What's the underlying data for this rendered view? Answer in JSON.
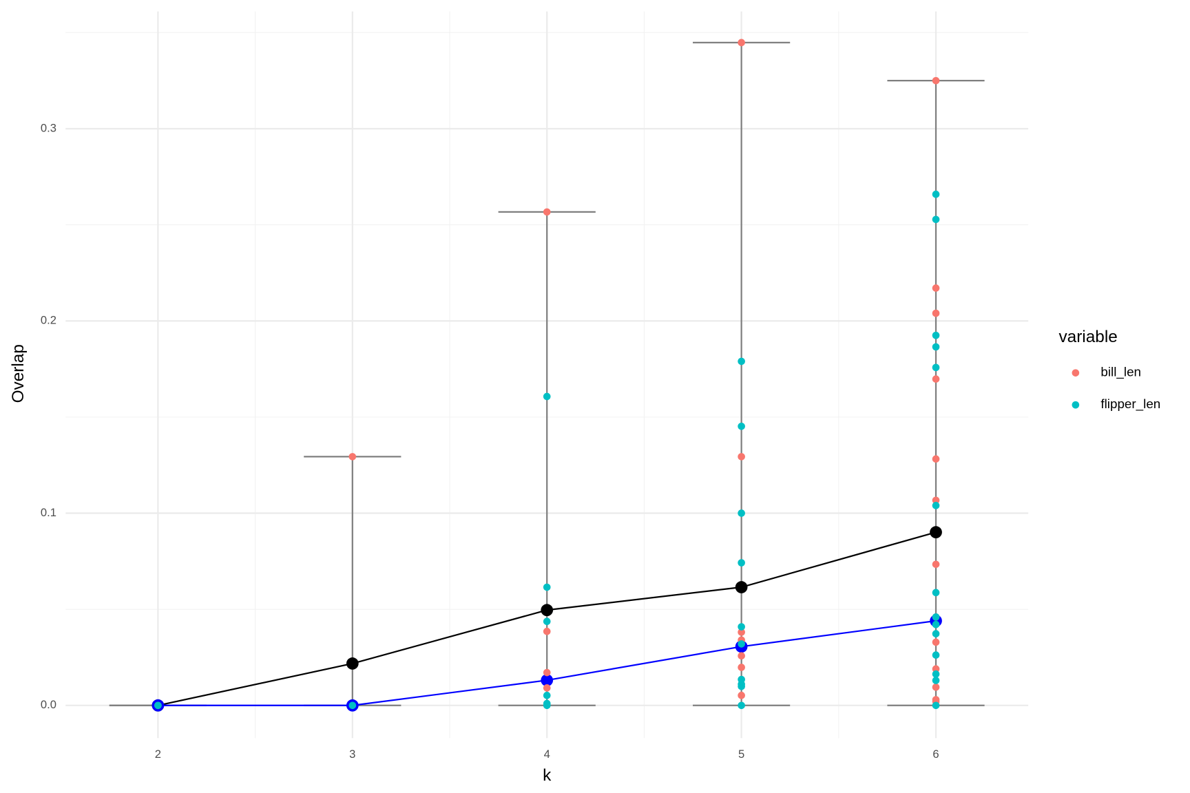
{
  "chart_data": {
    "type": "scatter",
    "xlabel": "k",
    "ylabel": "Overlap",
    "legend_title": "variable",
    "legend": "right",
    "grid": true,
    "xlim": [
      1.525,
      6.475
    ],
    "ylim": [
      -0.017,
      0.361
    ],
    "xticks": [
      2,
      3,
      4,
      5,
      6
    ],
    "yticks": [
      {
        "value": 0,
        "label": "0.0"
      },
      0.1,
      0.2,
      0.3
    ],
    "xminorticks": [
      2.5,
      3.5,
      4.5,
      5.5
    ],
    "yminorticks": [
      0.05,
      0.15,
      0.25,
      0.35
    ],
    "k": [
      2,
      3,
      4,
      5,
      6
    ],
    "range_min": [
      0,
      0,
      0,
      0,
      0
    ],
    "range_max": [
      0,
      0.1294,
      0.2567,
      0.3448,
      0.325
    ],
    "range_color": "#7f7f7f",
    "lines": [
      {
        "color": "#000000",
        "values": [
          0,
          0.0218,
          0.0496,
          0.0615,
          0.0901
        ]
      },
      {
        "color": "#0000ff",
        "values": [
          0,
          0,
          0.0131,
          0.0306,
          0.044
        ]
      }
    ],
    "series": [
      {
        "name": "bill_len",
        "color": "#f8766d",
        "x": [
          2,
          3,
          4,
          4,
          4,
          4,
          5,
          5,
          5,
          5,
          5,
          5,
          5,
          6,
          6,
          6,
          6,
          6,
          6,
          6,
          6,
          6,
          6,
          6,
          6,
          6
        ],
        "values": [
          0,
          0.1294,
          0.2567,
          0.0385,
          0.0171,
          0.0091,
          0.3448,
          0.1294,
          0.0381,
          0.034,
          0.0258,
          0.0198,
          0.0052,
          0.325,
          0.2171,
          0.204,
          0.1698,
          0.1282,
          0.1067,
          0.0734,
          0.046,
          0.0329,
          0.019,
          0.0095,
          0.003,
          0.002
        ]
      },
      {
        "name": "flipper_len",
        "color": "#00bfc4",
        "x": [
          2,
          3,
          4,
          4,
          4,
          4,
          4,
          4,
          5,
          5,
          5,
          5,
          5,
          5,
          5,
          5,
          5,
          5,
          6,
          6,
          6,
          6,
          6,
          6,
          6,
          6,
          6,
          6,
          6,
          6,
          6,
          6
        ],
        "values": [
          0,
          0,
          0.1607,
          0.0615,
          0.0437,
          0.0052,
          0.001,
          0,
          0.179,
          0.1452,
          0.1,
          0.0742,
          0.0409,
          0.032,
          0.0135,
          0.011,
          0.0099,
          0,
          0.2659,
          0.2528,
          0.1925,
          0.1865,
          0.1758,
          0.104,
          0.0587,
          0.046,
          0.0421,
          0.0373,
          0.0262,
          0.0163,
          0.013,
          0
        ]
      }
    ]
  }
}
